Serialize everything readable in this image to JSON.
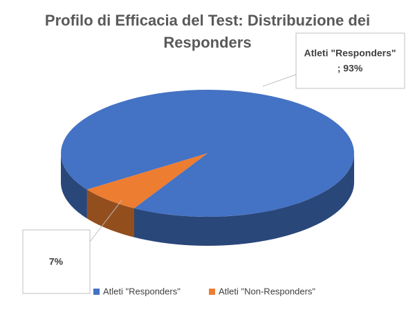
{
  "chart_data": {
    "type": "pie",
    "title": "Profilo di Efficacia del Test: Distribuzione dei Responders",
    "categories": [
      "Atleti \"Responders\"",
      "Atleti \"Non-Responders\""
    ],
    "values": [
      93,
      7
    ],
    "value_labels": [
      "; 93%",
      "7%"
    ],
    "colors": [
      "#4472c4",
      "#ed7d31"
    ],
    "legend": "bottom"
  }
}
